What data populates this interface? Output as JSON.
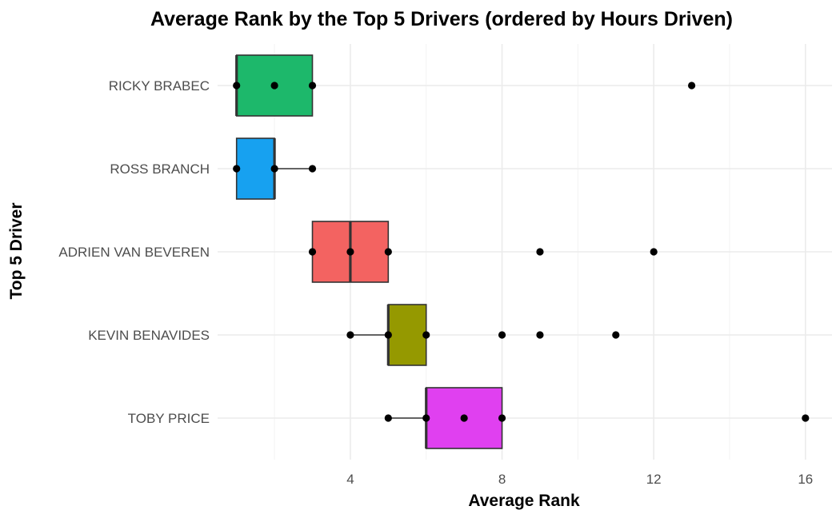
{
  "chart_data": {
    "type": "boxplot",
    "title": "Average Rank by the Top 5 Drivers (ordered by Hours Driven)",
    "xlabel": "Average Rank",
    "ylabel": "Top 5 Driver",
    "xlim": [
      0.5,
      16.7
    ],
    "xticks": [
      4,
      8,
      12,
      16
    ],
    "grid": true,
    "legend": "none",
    "categories": [
      "RICKY BRABEC",
      "ROSS BRANCH",
      "ADRIEN VAN BEVEREN",
      "KEVIN BENAVIDES",
      "TOBY PRICE"
    ],
    "series": [
      {
        "category": "RICKY BRABEC",
        "color": "#1DB86B",
        "q1": 1,
        "median": 1,
        "q3": 3,
        "whisker_low": 1,
        "whisker_high": 3,
        "points": [
          1,
          2,
          3,
          13
        ]
      },
      {
        "category": "ROSS BRANCH",
        "color": "#17A1F0",
        "q1": 1,
        "median": 2,
        "q3": 2,
        "whisker_low": 1,
        "whisker_high": 3,
        "points": [
          1,
          2,
          3
        ]
      },
      {
        "category": "ADRIEN VAN BEVEREN",
        "color": "#F36361",
        "q1": 3,
        "median": 4,
        "q3": 5,
        "whisker_low": 3,
        "whisker_high": 5,
        "points": [
          3,
          4,
          5,
          9,
          12
        ]
      },
      {
        "category": "KEVIN BENAVIDES",
        "color": "#959900",
        "q1": 5,
        "median": 5,
        "q3": 6,
        "whisker_low": 4,
        "whisker_high": 6,
        "points": [
          4,
          5,
          6,
          8,
          9,
          11
        ]
      },
      {
        "category": "TOBY PRICE",
        "color": "#E040F0",
        "q1": 6,
        "median": 6,
        "q3": 8,
        "whisker_low": 5,
        "whisker_high": 8,
        "points": [
          5,
          6,
          7,
          8,
          16
        ]
      }
    ]
  }
}
